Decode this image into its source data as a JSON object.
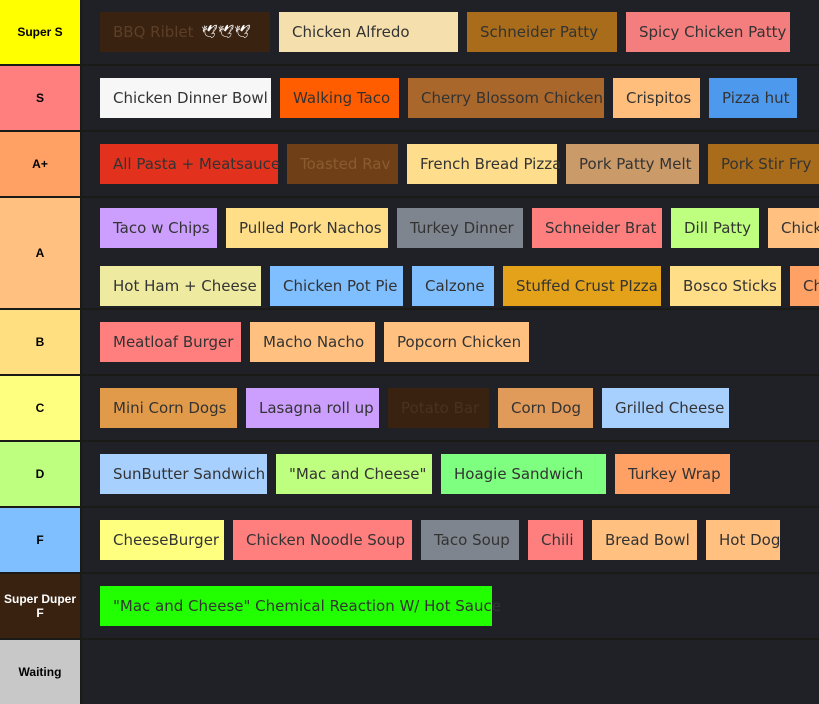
{
  "tiers": [
    {
      "label": "Super S",
      "color": "#ffff00",
      "items": [
        {
          "text": "BBQ Riblet",
          "bg": "#3a2210",
          "fg": "#5b3f28",
          "doves": "🕊🕊🕊"
        },
        {
          "text": "Chicken Alfredo",
          "bg": "#f5dfad"
        },
        {
          "text": "Schneider Patty",
          "bg": "#a86c1a"
        },
        {
          "text": "Spicy Chicken Patty",
          "bg": "#f47d7d"
        }
      ]
    },
    {
      "label": "S",
      "color": "#ff7f7f",
      "items": [
        {
          "text": "Chicken Dinner Bowl",
          "bg": "#f7f7f7"
        },
        {
          "text": "Walking Taco",
          "bg": "#ff5d00"
        },
        {
          "text": "Cherry Blossom Chicken",
          "bg": "#a9672c"
        },
        {
          "text": "Crispitos",
          "bg": "#ffbe7c"
        },
        {
          "text": "Pizza hut",
          "bg": "#4d99ee"
        }
      ]
    },
    {
      "label": "A+",
      "color": "#ffa064",
      "items": [
        {
          "text": "All Pasta + Meatsauce",
          "bg": "#e2311d"
        },
        {
          "text": "Toasted Rav",
          "bg": "#6f4017",
          "fg": "#8a5a30"
        },
        {
          "text": "French Bread Pizza",
          "bg": "#fede8c"
        },
        {
          "text": "Pork Patty Melt",
          "bg": "#ca9a69"
        },
        {
          "text": "Pork Stir Fry",
          "bg": "#a86c1a"
        }
      ]
    },
    {
      "label": "A",
      "color": "#ffc080",
      "lines": [
        [
          {
            "text": "Taco w Chips",
            "bg": "#cc9fff"
          },
          {
            "text": "Pulled Pork Nachos",
            "bg": "#ffde87"
          },
          {
            "text": "Turkey Dinner",
            "bg": "#7f858f"
          },
          {
            "text": "Schneider Brat",
            "bg": "#ff7f7f"
          },
          {
            "text": "Dill Patty",
            "bg": "#bfff7f"
          },
          {
            "text": "Chicke",
            "bg": "#ffc080"
          }
        ],
        [
          {
            "text": "Hot Ham + Cheese",
            "bg": "#eeeaa0"
          },
          {
            "text": "Chicken Pot Pie",
            "bg": "#7fbfff"
          },
          {
            "text": "Calzone",
            "bg": "#7fbfff"
          },
          {
            "text": "Stuffed Crust PIzza",
            "bg": "#e4a21a"
          },
          {
            "text": "Bosco Sticks",
            "bg": "#ffde87"
          },
          {
            "text": "Che",
            "bg": "#ffa064"
          }
        ]
      ]
    },
    {
      "label": "B",
      "color": "#ffdf80",
      "items": [
        {
          "text": "Meatloaf Burger",
          "bg": "#ff7f7f"
        },
        {
          "text": "Macho Nacho",
          "bg": "#ffc080"
        },
        {
          "text": "Popcorn Chicken",
          "bg": "#ffc080"
        }
      ]
    },
    {
      "label": "C",
      "color": "#ffff7f",
      "items": [
        {
          "text": "Mini Corn Dogs",
          "bg": "#e09a4a"
        },
        {
          "text": "Lasagna roll up",
          "bg": "#cc9fff"
        },
        {
          "text": "Potato Bar",
          "bg": "#3a2210",
          "fg": "#4a3120"
        },
        {
          "text": "Corn Dog",
          "bg": "#e09a5a"
        },
        {
          "text": "Grilled Cheese",
          "bg": "#a8d0ff"
        }
      ]
    },
    {
      "label": "D",
      "color": "#bfff7f",
      "items": [
        {
          "text": "SunButter Sandwich",
          "bg": "#a8d0ff"
        },
        {
          "text": "\"Mac and Cheese\"",
          "bg": "#bfff7f"
        },
        {
          "text": "Hoagie Sandwich",
          "bg": "#7fff7f"
        },
        {
          "text": "Turkey Wrap",
          "bg": "#ffa064"
        }
      ]
    },
    {
      "label": "F",
      "color": "#7fbfff",
      "items": [
        {
          "text": "CheeseBurger",
          "bg": "#ffff7f"
        },
        {
          "text": "Chicken Noodle Soup",
          "bg": "#ff7f7f"
        },
        {
          "text": "Taco Soup",
          "bg": "#7f858f"
        },
        {
          "text": "Chili",
          "bg": "#ff7f7f"
        },
        {
          "text": "Bread Bowl",
          "bg": "#ffc080"
        },
        {
          "text": "Hot Dog",
          "bg": "#ffc080"
        }
      ]
    },
    {
      "label": "Super Duper F",
      "color": "#3a2210",
      "labelColor": "#ffffff",
      "items": [
        {
          "text": "\"Mac and Cheese\" Chemical Reaction W/ Hot Sauce",
          "bg": "#22ff00"
        }
      ]
    },
    {
      "label": "Waiting",
      "color": "#c8c8c8",
      "items": []
    }
  ]
}
